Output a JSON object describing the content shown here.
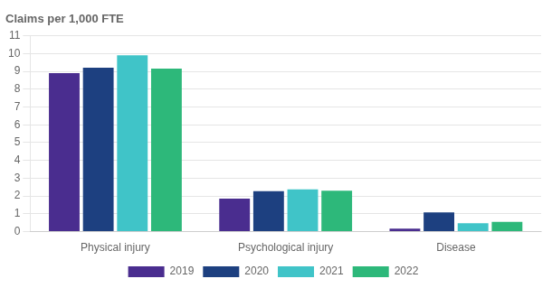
{
  "chart_data": {
    "type": "bar",
    "ylabel": "Claims per 1,000 FTE",
    "categories": [
      "Physical injury",
      "Psychological injury",
      "Disease"
    ],
    "series": [
      {
        "name": "2019",
        "color": "#4a2d8f",
        "values": [
          8.9,
          1.85,
          0.17
        ]
      },
      {
        "name": "2020",
        "color": "#1d4080",
        "values": [
          9.2,
          2.27,
          1.08
        ]
      },
      {
        "name": "2021",
        "color": "#40c4c8",
        "values": [
          9.9,
          2.38,
          0.47
        ]
      },
      {
        "name": "2022",
        "color": "#2db87a",
        "values": [
          9.15,
          2.3,
          0.55
        ]
      }
    ],
    "ylim": [
      0,
      11
    ],
    "yticks": [
      0,
      1,
      2,
      3,
      4,
      5,
      6,
      7,
      8,
      9,
      10,
      11
    ],
    "grid": true,
    "legend": "bottom"
  }
}
